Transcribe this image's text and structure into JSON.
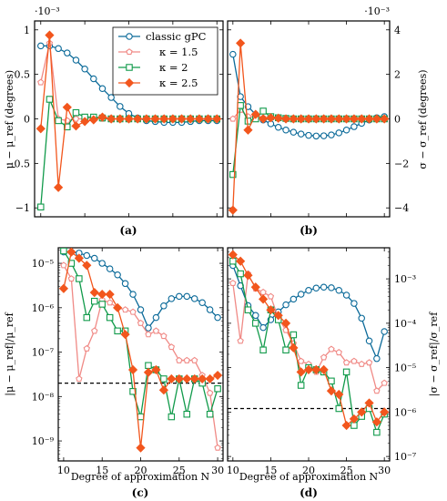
{
  "colors": {
    "classic_gpc": "#0b6a99",
    "kappa_1_5": "#f08a86",
    "kappa_2": "#109a4a",
    "kappa_2_5": "#f2561d",
    "reference_line": "#000000"
  },
  "chart_data": [
    {
      "panel": "(a)",
      "type": "line",
      "ylabel": "μ − μ_ref (degrees)",
      "xlabel": "",
      "exponent": "·10⁻³",
      "xlim": [
        9.3,
        30.7
      ],
      "ylim": [
        -1.1,
        1.1
      ],
      "yticks": [
        -1,
        -0.5,
        0,
        0.5,
        1
      ],
      "ytick_labels": [
        "−1",
        "−0.5",
        "0",
        "0.5",
        "1"
      ],
      "xticks": [
        10,
        15,
        20,
        25,
        30
      ],
      "legend": [
        "classic gPC",
        "κ = 1.5",
        "κ = 2",
        "κ = 2.5"
      ],
      "legend_position": "top-right",
      "x": [
        10,
        11,
        12,
        13,
        14,
        15,
        16,
        17,
        18,
        19,
        20,
        21,
        22,
        23,
        24,
        25,
        26,
        27,
        28,
        29,
        30
      ],
      "series": [
        {
          "name": "classic gPC",
          "marker": "circle",
          "values": [
            0.82,
            0.82,
            0.79,
            0.74,
            0.66,
            0.56,
            0.45,
            0.34,
            0.24,
            0.14,
            0.06,
            0.01,
            -0.02,
            -0.03,
            -0.04,
            -0.04,
            -0.04,
            -0.03,
            -0.02,
            -0.02,
            -0.02
          ]
        },
        {
          "name": "κ = 1.5",
          "marker": "pentagon",
          "values": [
            0.41,
            0.85,
            0.0,
            -0.02,
            0.0,
            0.0,
            0.01,
            0.0,
            0.0,
            0.0,
            0.0,
            0.0,
            0.0,
            0.0,
            0.0,
            0.0,
            0.0,
            0.0,
            0.0,
            0.0,
            0.0
          ]
        },
        {
          "name": "κ = 2",
          "marker": "square",
          "values": [
            -0.99,
            0.22,
            -0.02,
            -0.09,
            0.07,
            0.02,
            0.02,
            0.01,
            0.0,
            0.0,
            0.0,
            0.0,
            0.0,
            0.0,
            0.0,
            0.0,
            0.0,
            0.0,
            0.0,
            0.0,
            0.0
          ]
        },
        {
          "name": "κ = 2.5",
          "marker": "diamond",
          "values": [
            -0.11,
            0.94,
            -0.77,
            0.13,
            -0.08,
            -0.03,
            -0.01,
            0.02,
            0.0,
            0.0,
            0.0,
            0.0,
            0.0,
            0.0,
            0.0,
            0.0,
            0.0,
            0.0,
            0.0,
            0.0,
            0.0
          ]
        }
      ]
    },
    {
      "panel": "(b)",
      "type": "line",
      "ylabel": "σ − σ_ref (degrees)",
      "xlabel": "",
      "exponent": "·10⁻³",
      "xlim": [
        9.3,
        30.7
      ],
      "ylim": [
        -4.4,
        4.4
      ],
      "yticks": [
        -4,
        -2,
        0,
        2,
        4
      ],
      "ytick_labels": [
        "−4",
        "−2",
        "0",
        "2",
        "4"
      ],
      "xticks": [
        10,
        15,
        20,
        25,
        30
      ],
      "x": [
        10,
        11,
        12,
        13,
        14,
        15,
        16,
        17,
        18,
        19,
        20,
        21,
        22,
        23,
        24,
        25,
        26,
        27,
        28,
        29,
        30
      ],
      "series": [
        {
          "name": "classic gPC",
          "marker": "circle",
          "values": [
            2.9,
            1.0,
            0.55,
            0.2,
            -0.05,
            -0.22,
            -0.38,
            -0.5,
            -0.6,
            -0.68,
            -0.74,
            -0.77,
            -0.76,
            -0.72,
            -0.63,
            -0.5,
            -0.35,
            -0.2,
            -0.05,
            0.05,
            0.1
          ]
        },
        {
          "name": "κ = 1.5",
          "marker": "pentagon",
          "values": [
            0.0,
            0.4,
            0.1,
            0.1,
            0.05,
            0.03,
            0.02,
            0.01,
            0.0,
            0.0,
            0.0,
            0.0,
            0.0,
            0.0,
            0.0,
            0.0,
            0.0,
            0.0,
            0.0,
            0.0,
            0.0
          ]
        },
        {
          "name": "κ = 2",
          "marker": "square",
          "values": [
            -2.5,
            0.6,
            -0.1,
            0.0,
            0.35,
            0.1,
            0.05,
            0.02,
            0.0,
            0.0,
            0.0,
            0.0,
            0.0,
            0.0,
            0.0,
            0.0,
            0.0,
            0.0,
            0.0,
            0.0,
            0.0
          ]
        },
        {
          "name": "κ = 2.5",
          "marker": "diamond",
          "values": [
            -4.1,
            3.4,
            -0.5,
            0.2,
            0.0,
            0.05,
            0.03,
            0.0,
            0.0,
            0.0,
            0.0,
            0.0,
            0.0,
            0.0,
            0.0,
            0.0,
            0.0,
            0.0,
            0.0,
            0.0,
            0.0
          ]
        }
      ]
    },
    {
      "panel": "(c)",
      "type": "line",
      "scale": "log",
      "ylabel": "|μ − μ_ref|/μ_ref",
      "xlabel": "Degree of approximation N",
      "xlim": [
        9.3,
        30.7
      ],
      "ylim_log10": [
        -9.45,
        -4.65
      ],
      "yticks_log10": [
        -9,
        -8,
        -7,
        -6,
        -5
      ],
      "ytick_labels": [
        "10⁻⁹",
        "10⁻⁸",
        "10⁻⁷",
        "10⁻⁶",
        "10⁻⁵"
      ],
      "xticks": [
        10,
        15,
        20,
        25,
        30
      ],
      "reference_value": 2e-08,
      "x": [
        10,
        11,
        12,
        13,
        14,
        15,
        16,
        17,
        18,
        19,
        20,
        21,
        22,
        23,
        24,
        25,
        26,
        27,
        28,
        29,
        30
      ],
      "series": [
        {
          "name": "classic gPC",
          "marker": "circle",
          "values": [
            1.8e-05,
            1.8e-05,
            1.7e-05,
            1.5e-05,
            1.3e-05,
            1e-05,
            7.5e-06,
            5.5e-06,
            3.5e-06,
            2e-06,
            9e-07,
            3.5e-07,
            6e-07,
            1.1e-06,
            1.6e-06,
            1.8e-06,
            1.8e-06,
            1.6e-06,
            1.3e-06,
            9e-07,
            6e-07
          ]
        },
        {
          "name": "κ = 1.5",
          "marker": "pentagon",
          "values": [
            9e-06,
            4.5e-06,
            2.5e-08,
            1.2e-07,
            3e-07,
            1.5e-06,
            1.3e-06,
            1e-06,
            9e-07,
            8e-07,
            4.5e-07,
            2.5e-07,
            3e-07,
            2.3e-07,
            1.3e-07,
            6.5e-08,
            6.5e-08,
            6.5e-08,
            3e-08,
            1.2e-08,
            7e-10
          ]
        },
        {
          "name": "κ = 2",
          "marker": "square",
          "values": [
            1.9e-05,
            1e-05,
            4.5e-06,
            6e-07,
            1.4e-06,
            1.2e-06,
            6e-07,
            3e-07,
            3e-07,
            1.3e-08,
            3.5e-09,
            5e-08,
            4e-08,
            2.5e-08,
            3.5e-09,
            2.5e-08,
            4e-09,
            2.5e-08,
            2e-08,
            4e-09,
            1.5e-08
          ]
        },
        {
          "name": "κ = 2.5",
          "marker": "diamond",
          "values": [
            2.7e-06,
            1.8e-05,
            1.3e-05,
            9e-06,
            2.2e-06,
            2e-06,
            2e-06,
            1e-06,
            2.5e-07,
            4e-08,
            7e-10,
            3.5e-08,
            4e-08,
            1.4e-08,
            2.5e-08,
            2.5e-08,
            2.5e-08,
            2.5e-08,
            2.5e-08,
            2.5e-08,
            3e-08
          ]
        }
      ]
    },
    {
      "panel": "(d)",
      "type": "line",
      "scale": "log",
      "ylabel": "|σ − σ_ref|/σ_ref",
      "xlabel": "Degree of approximation N",
      "xlim": [
        9.3,
        30.7
      ],
      "ylim_log10": [
        -7.1,
        -2.3
      ],
      "yticks_log10": [
        -7,
        -6,
        -5,
        -4,
        -3
      ],
      "ytick_labels": [
        "10⁻⁷",
        "10⁻⁶",
        "10⁻⁵",
        "10⁻⁴",
        "10⁻³"
      ],
      "xticks": [
        10,
        15,
        20,
        25,
        30
      ],
      "reference_value": 1.2e-06,
      "x": [
        10,
        11,
        12,
        13,
        14,
        15,
        16,
        17,
        18,
        19,
        20,
        21,
        22,
        23,
        24,
        25,
        26,
        27,
        28,
        29,
        30
      ],
      "series": [
        {
          "name": "classic gPC",
          "marker": "circle",
          "values": [
            0.002,
            0.0007,
            0.00025,
            0.00015,
            8e-05,
            0.00012,
            0.00018,
            0.00026,
            0.00035,
            0.00045,
            0.00055,
            0.00062,
            0.00065,
            0.00063,
            0.00055,
            0.00043,
            0.00028,
            0.00013,
            4e-05,
            1.6e-05,
            6.5e-05
          ]
        },
        {
          "name": "κ = 1.5",
          "marker": "pentagon",
          "values": [
            0.0008,
            4e-05,
            0.0013,
            0.0006,
            0.0005,
            0.0004,
            0.00013,
            7e-05,
            3.5e-05,
            1.4e-05,
            1.2e-05,
            8e-06,
            1.7e-05,
            2.6e-05,
            2.2e-05,
            1.3e-05,
            1.4e-05,
            1.2e-05,
            1.3e-05,
            3e-06,
            4.5e-06
          ]
        },
        {
          "name": "κ = 2",
          "marker": "square",
          "values": [
            0.0025,
            0.0013,
            0.0002,
            0.0001,
            2.5e-05,
            0.0002,
            0.00012,
            2.5e-05,
            5.5e-05,
            4e-06,
            1e-05,
            9e-06,
            8e-06,
            5e-06,
            1.2e-06,
            8e-06,
            5e-07,
            8e-07,
            1.2e-06,
            3.5e-07,
            9e-07
          ]
        },
        {
          "name": "κ = 2.5",
          "marker": "diamond",
          "values": [
            0.0035,
            0.0025,
            0.0012,
            0.00065,
            0.00035,
            0.0002,
            0.00015,
            0.0001,
            2.8e-05,
            8e-06,
            9e-06,
            9e-06,
            9e-06,
            3e-06,
            2.5e-06,
            5e-07,
            7e-07,
            1e-06,
            1.6e-06,
            6e-07,
            1e-06
          ]
        }
      ]
    }
  ]
}
